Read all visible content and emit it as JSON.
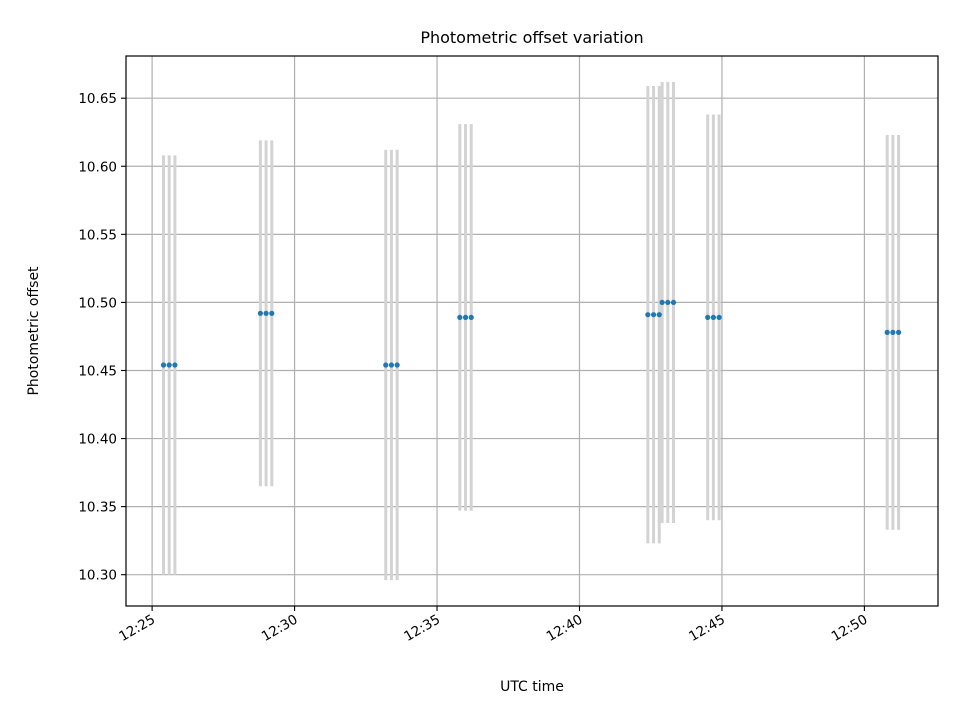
{
  "chart_data": {
    "type": "scatter",
    "title": "Photometric offset variation",
    "xlabel": "UTC time",
    "ylabel": "Photometric offset",
    "grid": true,
    "x_ticks": [
      "12:25",
      "12:30",
      "12:35",
      "12:40",
      "12:45",
      "12:50"
    ],
    "y_ticks": [
      "10.30",
      "10.35",
      "10.40",
      "10.45",
      "10.50",
      "10.55",
      "10.60",
      "10.65"
    ],
    "xlim": [
      "12:24:05",
      "12:52:35"
    ],
    "ylim": [
      10.277,
      10.681
    ],
    "colors": {
      "points": "#1f77b4",
      "errorbars": "#d3d3d3",
      "grid": "#b0b0b0"
    },
    "series": [
      {
        "points": [
          {
            "x": "12:25:24",
            "y": 10.454,
            "yerr": 0.154
          },
          {
            "x": "12:25:36",
            "y": 10.454,
            "yerr": 0.154
          },
          {
            "x": "12:25:48",
            "y": 10.454,
            "yerr": 0.154
          },
          {
            "x": "12:28:48",
            "y": 10.492,
            "yerr": 0.127
          },
          {
            "x": "12:29:00",
            "y": 10.492,
            "yerr": 0.127
          },
          {
            "x": "12:29:12",
            "y": 10.492,
            "yerr": 0.127
          },
          {
            "x": "12:33:12",
            "y": 10.454,
            "yerr": 0.158
          },
          {
            "x": "12:33:24",
            "y": 10.454,
            "yerr": 0.158
          },
          {
            "x": "12:33:36",
            "y": 10.454,
            "yerr": 0.158
          },
          {
            "x": "12:35:48",
            "y": 10.489,
            "yerr": 0.142
          },
          {
            "x": "12:36:00",
            "y": 10.489,
            "yerr": 0.142
          },
          {
            "x": "12:36:12",
            "y": 10.489,
            "yerr": 0.142
          },
          {
            "x": "12:42:24",
            "y": 10.491,
            "yerr": 0.168
          },
          {
            "x": "12:42:36",
            "y": 10.491,
            "yerr": 0.168
          },
          {
            "x": "12:42:48",
            "y": 10.491,
            "yerr": 0.168
          },
          {
            "x": "12:42:54",
            "y": 10.5,
            "yerr": 0.162
          },
          {
            "x": "12:43:06",
            "y": 10.5,
            "yerr": 0.162
          },
          {
            "x": "12:43:18",
            "y": 10.5,
            "yerr": 0.162
          },
          {
            "x": "12:44:30",
            "y": 10.489,
            "yerr": 0.149
          },
          {
            "x": "12:44:42",
            "y": 10.489,
            "yerr": 0.149
          },
          {
            "x": "12:44:54",
            "y": 10.489,
            "yerr": 0.149
          },
          {
            "x": "12:50:48",
            "y": 10.478,
            "yerr": 0.145
          },
          {
            "x": "12:51:00",
            "y": 10.478,
            "yerr": 0.145
          },
          {
            "x": "12:51:12",
            "y": 10.478,
            "yerr": 0.145
          }
        ]
      }
    ]
  }
}
